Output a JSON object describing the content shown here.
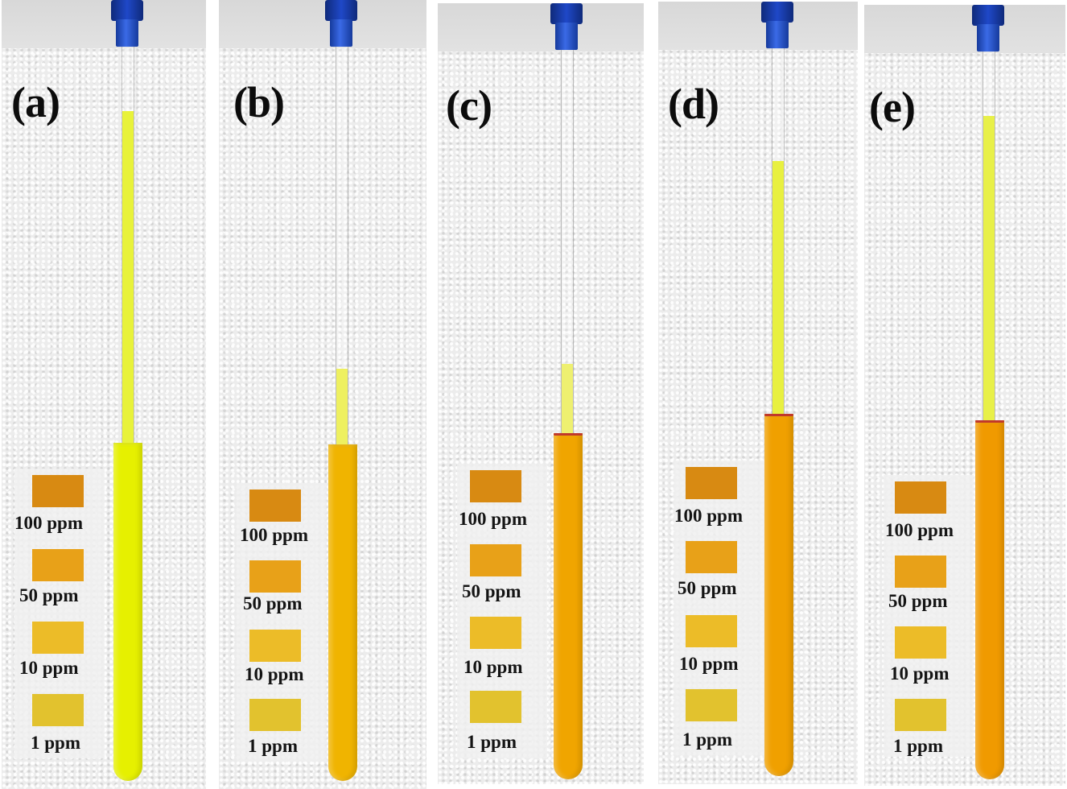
{
  "panels": [
    {
      "label": "(a)",
      "liquid": "#e6f000",
      "liquid_upper": "#e8f23a"
    },
    {
      "label": "(b)",
      "liquid": "#f0b400",
      "liquid_upper": "#eef060"
    },
    {
      "label": "(c)",
      "liquid": "#f0a500",
      "liquid_upper": "#eef070"
    },
    {
      "label": "(d)",
      "liquid": "#f0a000",
      "liquid_upper": "#e8f040"
    },
    {
      "label": "(e)",
      "liquid": "#f09a00",
      "liquid_upper": "#e8f048"
    }
  ],
  "color_scale": {
    "levels": [
      {
        "label": "100 ppm",
        "color": "#d88a12"
      },
      {
        "label": "50 ppm",
        "color": "#e8a118"
      },
      {
        "label": "10 ppm",
        "color": "#ecbc28"
      },
      {
        "label": "1 ppm",
        "color": "#e2c22e"
      }
    ]
  },
  "colors": {
    "cap": "#1f48c8",
    "foam": "#ececec",
    "label_text": "#0c0c0c"
  }
}
